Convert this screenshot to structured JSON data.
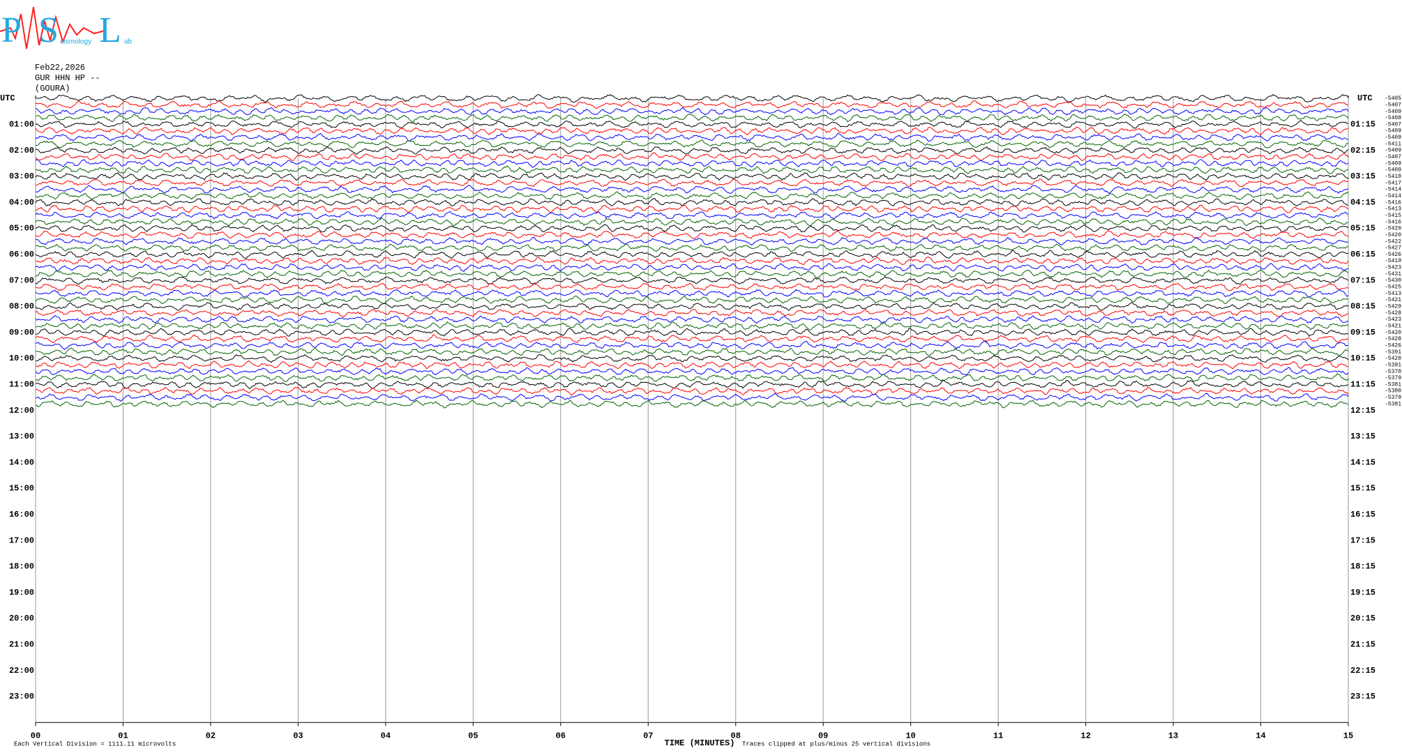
{
  "header": {
    "logo": [
      "P",
      "S",
      "L"
    ],
    "logo_words": [
      "eismology",
      "ab"
    ],
    "date": "Feb22,2026",
    "station": "GUR HHN HP --",
    "site": "(GOURA)"
  },
  "chart_data": {
    "type": "helicorder",
    "left_label": "UTC",
    "right_label": "UTC",
    "left_times": [
      "01:00",
      "02:00",
      "03:00",
      "04:00",
      "05:00",
      "06:00",
      "07:00",
      "08:00",
      "09:00",
      "10:00",
      "11:00",
      "12:00",
      "13:00",
      "14:00",
      "15:00",
      "16:00",
      "17:00",
      "18:00",
      "19:00",
      "20:00",
      "21:00",
      "22:00",
      "23:00"
    ],
    "right_times": [
      "01:15",
      "02:15",
      "03:15",
      "04:15",
      "05:15",
      "06:15",
      "07:15",
      "08:15",
      "09:15",
      "10:15",
      "11:15",
      "12:15",
      "13:15",
      "14:15",
      "15:15",
      "16:15",
      "17:15",
      "18:15",
      "19:15",
      "20:15",
      "21:15",
      "22:15",
      "23:15"
    ],
    "row_offsets": [
      -5405,
      -5407,
      -5409,
      -5408,
      -5407,
      -5409,
      -5409,
      -5411,
      -5409,
      -5407,
      -5409,
      -5409,
      -5410,
      -5417,
      -5414,
      -5414,
      -5416,
      -5413,
      -5415,
      -5416,
      -5420,
      -5420,
      -5422,
      -5427,
      -5426,
      -5419,
      -5423,
      -5431,
      -5430,
      -5425,
      -5413,
      -5421,
      -5429,
      -5428,
      -5423,
      -5421,
      -5420,
      -5428,
      -5426,
      -5391,
      -5420,
      -5391,
      -5370,
      -5379,
      -5381,
      -5380,
      -5379,
      -5381
    ],
    "trace_colors": [
      "#000000",
      "#ff0000",
      "#0000ff",
      "#006400"
    ],
    "xlim": [
      0,
      15
    ],
    "xticks": [
      {
        "value": 0,
        "label": "00"
      },
      {
        "value": 1,
        "label": "01"
      },
      {
        "value": 2,
        "label": "02"
      },
      {
        "value": 3,
        "label": "03"
      },
      {
        "value": 4,
        "label": "04"
      },
      {
        "value": 5,
        "label": "05"
      },
      {
        "value": 6,
        "label": "06"
      },
      {
        "value": 7,
        "label": "07"
      },
      {
        "value": 8,
        "label": "08"
      },
      {
        "value": 9,
        "label": "09"
      },
      {
        "value": 10,
        "label": "10"
      },
      {
        "value": 11,
        "label": "11"
      },
      {
        "value": 12,
        "label": "12"
      },
      {
        "value": 13,
        "label": "13"
      },
      {
        "value": 14,
        "label": "14"
      },
      {
        "value": 15,
        "label": "15"
      }
    ],
    "xlabel": "TIME (MINUTES)",
    "footnote_left": "Each Vertical Division = 1111.11 microvolts",
    "footnote_center": "Traces clipped at plus/minus 25 vertical divisions"
  }
}
